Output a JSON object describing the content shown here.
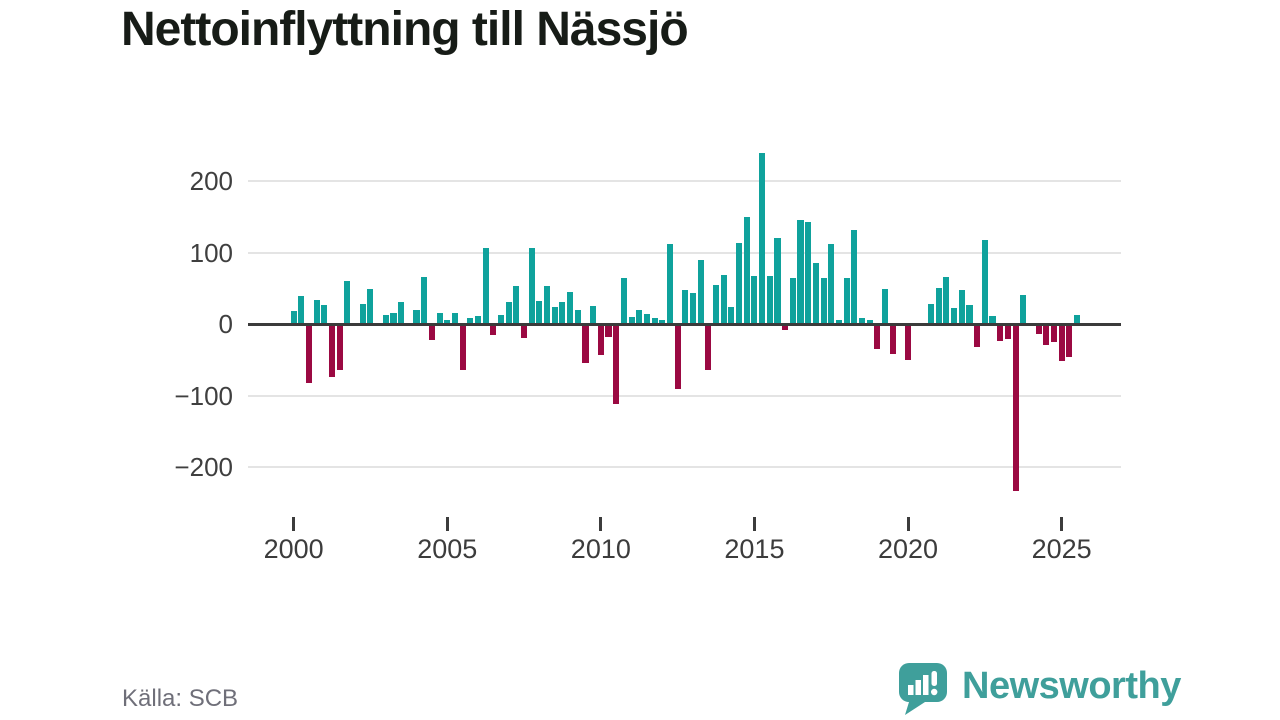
{
  "title": "Nettoinflyttning till Nässjö",
  "source": {
    "label": "Källa: SCB"
  },
  "brand": {
    "name": "Newsworthy",
    "logo_icon": "speech-bubble-bar-chart-icon"
  },
  "colors": {
    "positive_bar": "#0fa29c",
    "negative_bar": "#9b0942",
    "gridline": "#e4e4e4",
    "zero_line": "#3b3b3b",
    "brand_teal": "#3f9f9b",
    "title_text": "#171c17",
    "axis_text": "#3f3f3f",
    "source_text": "#6f6f79"
  },
  "chart_data": {
    "type": "bar",
    "title": "Nettoinflyttning till Nässjö",
    "xlabel": "",
    "ylabel": "",
    "ylim": [
      -250,
      250
    ],
    "grid": "horizontal",
    "legend": "none",
    "yticks": [
      {
        "label": "200",
        "value": 200
      },
      {
        "label": "100",
        "value": 100
      },
      {
        "label": "0",
        "value": 0
      },
      {
        "label": "−100",
        "value": -100
      },
      {
        "label": "−200",
        "value": -200
      }
    ],
    "xticks": [
      {
        "label": "2000",
        "year": 2000
      },
      {
        "label": "2005",
        "year": 2005
      },
      {
        "label": "2010",
        "year": 2010
      },
      {
        "label": "2015",
        "year": 2015
      },
      {
        "label": "2020",
        "year": 2020
      },
      {
        "label": "2025",
        "year": 2025
      }
    ],
    "quarters": [
      "2000Q1",
      "2000Q2",
      "2000Q3",
      "2000Q4",
      "2001Q1",
      "2001Q2",
      "2001Q3",
      "2001Q4",
      "2002Q1",
      "2002Q2",
      "2002Q3",
      "2002Q4",
      "2003Q1",
      "2003Q2",
      "2003Q3",
      "2003Q4",
      "2004Q1",
      "2004Q2",
      "2004Q3",
      "2004Q4",
      "2005Q1",
      "2005Q2",
      "2005Q3",
      "2005Q4",
      "2006Q1",
      "2006Q2",
      "2006Q3",
      "2006Q4",
      "2007Q1",
      "2007Q2",
      "2007Q3",
      "2007Q4",
      "2008Q1",
      "2008Q2",
      "2008Q3",
      "2008Q4",
      "2009Q1",
      "2009Q2",
      "2009Q3",
      "2009Q4",
      "2010Q1",
      "2010Q2",
      "2010Q3",
      "2010Q4",
      "2011Q1",
      "2011Q2",
      "2011Q3",
      "2011Q4",
      "2012Q1",
      "2012Q2",
      "2012Q3",
      "2012Q4",
      "2013Q1",
      "2013Q2",
      "2013Q3",
      "2013Q4",
      "2014Q1",
      "2014Q2",
      "2014Q3",
      "2014Q4",
      "2015Q1",
      "2015Q2",
      "2015Q3",
      "2015Q4",
      "2016Q1",
      "2016Q2",
      "2016Q3",
      "2016Q4",
      "2017Q1",
      "2017Q2",
      "2017Q3",
      "2017Q4",
      "2018Q1",
      "2018Q2",
      "2018Q3",
      "2018Q4",
      "2019Q1",
      "2019Q2",
      "2019Q3",
      "2019Q4",
      "2020Q1",
      "2020Q2",
      "2020Q3",
      "2020Q4",
      "2021Q1",
      "2021Q2",
      "2021Q3",
      "2021Q4",
      "2022Q1",
      "2022Q2",
      "2022Q3",
      "2022Q4",
      "2023Q1",
      "2023Q2",
      "2023Q3",
      "2023Q4",
      "2024Q1",
      "2024Q2",
      "2024Q3",
      "2024Q4",
      "2025Q1",
      "2025Q2",
      "2025Q3"
    ],
    "values": [
      18,
      39,
      -82,
      34,
      27,
      -74,
      -64,
      60,
      1,
      28,
      49,
      1,
      13,
      16,
      31,
      1,
      19,
      66,
      -22,
      15,
      5,
      16,
      -65,
      9,
      11,
      106,
      -15,
      13,
      31,
      53,
      -20,
      107,
      32,
      53,
      24,
      31,
      45,
      20,
      -54,
      25,
      -43,
      -18,
      -112,
      64,
      10,
      20,
      14,
      8,
      5,
      112,
      -91,
      47,
      44,
      89,
      -64,
      55,
      68,
      24,
      113,
      150,
      67,
      239,
      67,
      120,
      -9,
      64,
      145,
      143,
      86,
      64,
      112,
      6,
      64,
      132,
      8,
      5,
      -35,
      49,
      -42,
      0,
      -51,
      0,
      0,
      28,
      51,
      66,
      23,
      47,
      27,
      -32,
      118,
      11,
      -24,
      -21,
      -233,
      41,
      0,
      -14,
      -30,
      -25,
      -52,
      -46,
      12
    ]
  }
}
